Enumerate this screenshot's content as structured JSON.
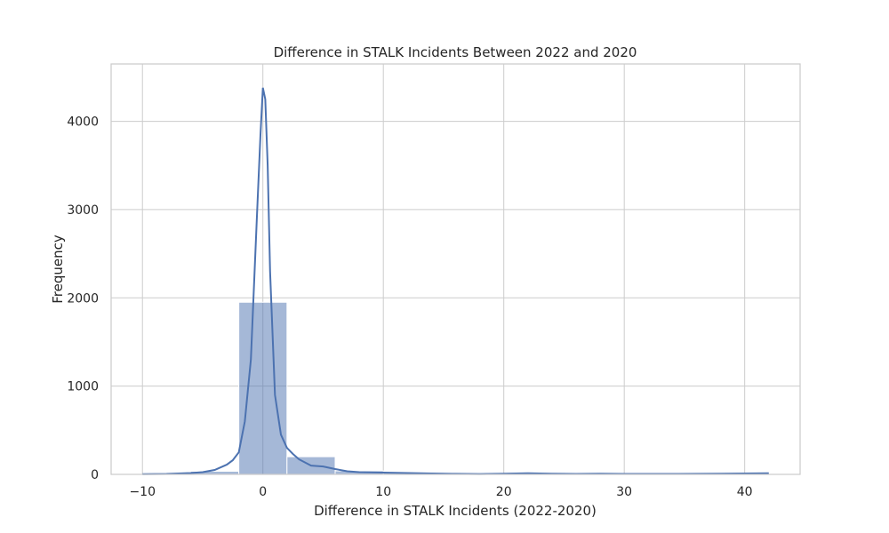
{
  "chart_data": {
    "type": "bar",
    "subtype": "histogram-with-kde",
    "title": "Difference in STALK Incidents Between 2022 and 2020",
    "xlabel": "Difference in STALK Incidents (2022-2020)",
    "ylabel": "Frequency",
    "xlim": [
      -12.6,
      44.6
    ],
    "ylim": [
      0,
      4650
    ],
    "xticks": [
      -10,
      0,
      10,
      20,
      30,
      40
    ],
    "yticks": [
      0,
      1000,
      2000,
      3000,
      4000
    ],
    "grid": true,
    "color": "#4c72b0",
    "bins": [
      {
        "start": -10,
        "end": -6,
        "count": 5
      },
      {
        "start": -6,
        "end": -2,
        "count": 35
      },
      {
        "start": -2,
        "end": 2,
        "count": 1950
      },
      {
        "start": 2,
        "end": 6,
        "count": 200
      },
      {
        "start": 6,
        "end": 10,
        "count": 40
      },
      {
        "start": 10,
        "end": 14,
        "count": 15
      },
      {
        "start": 14,
        "end": 18,
        "count": 8
      },
      {
        "start": 18,
        "end": 22,
        "count": 5
      },
      {
        "start": 22,
        "end": 26,
        "count": 10
      },
      {
        "start": 26,
        "end": 30,
        "count": 8
      },
      {
        "start": 30,
        "end": 34,
        "count": 4
      },
      {
        "start": 34,
        "end": 38,
        "count": 4
      },
      {
        "start": 38,
        "end": 42,
        "count": 15
      }
    ],
    "kde": {
      "x": [
        -10,
        -8,
        -6,
        -5,
        -4,
        -3,
        -2.5,
        -2,
        -1.5,
        -1,
        -0.5,
        -0.2,
        0,
        0.2,
        0.4,
        0.6,
        1,
        1.5,
        2,
        2.5,
        3,
        4,
        5,
        6,
        7,
        8,
        10,
        12,
        14,
        16,
        18,
        20,
        22,
        24,
        26,
        28,
        30,
        34,
        38,
        42
      ],
      "y": [
        2,
        5,
        15,
        25,
        50,
        110,
        160,
        250,
        600,
        1300,
        2900,
        3850,
        4380,
        4250,
        3500,
        2300,
        900,
        450,
        300,
        230,
        170,
        100,
        90,
        60,
        35,
        25,
        20,
        15,
        10,
        6,
        4,
        8,
        12,
        7,
        5,
        8,
        5,
        5,
        8,
        12
      ]
    }
  }
}
